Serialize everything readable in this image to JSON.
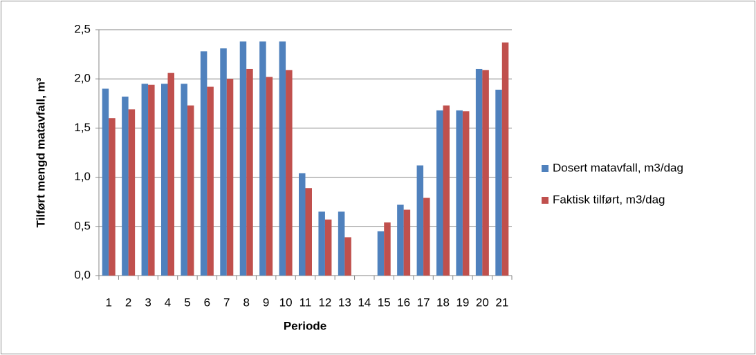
{
  "chart_data": {
    "type": "bar",
    "x_label": "Periode",
    "y_label": "Tilført mengd matavfall, m³",
    "categories": [
      "1",
      "2",
      "3",
      "4",
      "5",
      "6",
      "7",
      "8",
      "9",
      "10",
      "11",
      "12",
      "13",
      "14",
      "15",
      "16",
      "17",
      "18",
      "19",
      "20",
      "21"
    ],
    "series": [
      {
        "name": "Dosert matavfall, m3/dag",
        "color": "#4f81bd",
        "values": [
          1.9,
          1.82,
          1.95,
          1.95,
          1.95,
          2.28,
          2.31,
          2.38,
          2.38,
          2.38,
          1.04,
          0.65,
          0.65,
          null,
          0.45,
          0.72,
          1.12,
          1.68,
          1.68,
          2.1,
          1.89
        ]
      },
      {
        "name": "Faktisk tilført, m3/dag",
        "color": "#c0504d",
        "values": [
          1.6,
          1.69,
          1.94,
          2.06,
          1.73,
          1.92,
          2.0,
          2.1,
          2.02,
          2.09,
          0.89,
          0.57,
          0.39,
          null,
          0.54,
          0.67,
          0.79,
          1.73,
          1.67,
          2.09,
          2.37
        ]
      }
    ],
    "ylim": [
      0,
      2.5
    ],
    "yticks": [
      {
        "value": 0,
        "label": "0,0"
      },
      {
        "value": 0.5,
        "label": "0,5"
      },
      {
        "value": 1,
        "label": "1,0"
      },
      {
        "value": 1.5,
        "label": "1,5"
      },
      {
        "value": 2,
        "label": "2,0"
      },
      {
        "value": 2.5,
        "label": "2,5"
      }
    ],
    "grid": true,
    "legend": "right"
  }
}
